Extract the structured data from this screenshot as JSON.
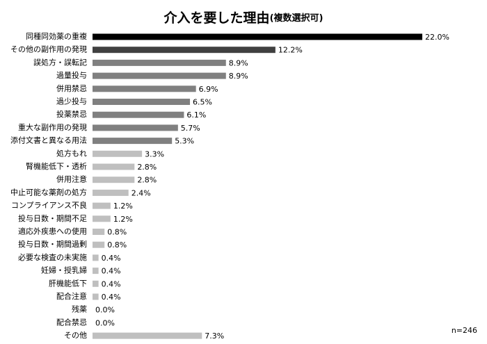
{
  "chart_data": {
    "type": "hbar",
    "title": "介入を要した理由",
    "subtitle": "(複数選択可)",
    "note": "n=246",
    "categories": [
      "同種同効薬の重複",
      "その他の副作用の発現",
      "誤処方・誤転記",
      "過量投与",
      "併用禁忌",
      "過少投与",
      "投薬禁忌",
      "重大な副作用の発現",
      "添付文書と異なる用法",
      "処方もれ",
      "腎機能低下・透析",
      "併用注意",
      "中止可能な薬剤の処方",
      "コンプライアンス不良",
      "投与日数・期間不足",
      "適応外疾患への使用",
      "投与日数・期間過剰",
      "必要な検査の未実施",
      "妊婦・授乳婦",
      "肝機能低下",
      "配合注意",
      "残薬",
      "配合禁忌",
      "その他"
    ],
    "values": [
      22.0,
      12.2,
      8.9,
      8.9,
      6.9,
      6.5,
      6.1,
      5.7,
      5.3,
      3.3,
      2.8,
      2.8,
      2.4,
      1.2,
      1.2,
      0.8,
      0.8,
      0.4,
      0.4,
      0.4,
      0.4,
      0.0,
      0.0,
      7.3
    ],
    "value_labels": [
      "22.0%",
      "12.2%",
      "8.9%",
      "8.9%",
      "6.9%",
      "6.5%",
      "6.1%",
      "5.7%",
      "5.3%",
      "3.3%",
      "2.8%",
      "2.8%",
      "2.4%",
      "1.2%",
      "1.2%",
      "0.8%",
      "0.8%",
      "0.4%",
      "0.4%",
      "0.4%",
      "0.4%",
      "0.0%",
      "0.0%",
      "7.3%"
    ],
    "colors": [
      "#000000",
      "#404040",
      "#808080",
      "#808080",
      "#808080",
      "#808080",
      "#808080",
      "#808080",
      "#808080",
      "#bfbfbf",
      "#bfbfbf",
      "#bfbfbf",
      "#bfbfbf",
      "#bfbfbf",
      "#bfbfbf",
      "#bfbfbf",
      "#bfbfbf",
      "#bfbfbf",
      "#bfbfbf",
      "#bfbfbf",
      "#bfbfbf",
      "#bfbfbf",
      "#bfbfbf",
      "#bfbfbf"
    ],
    "xlim": [
      0,
      22
    ]
  }
}
